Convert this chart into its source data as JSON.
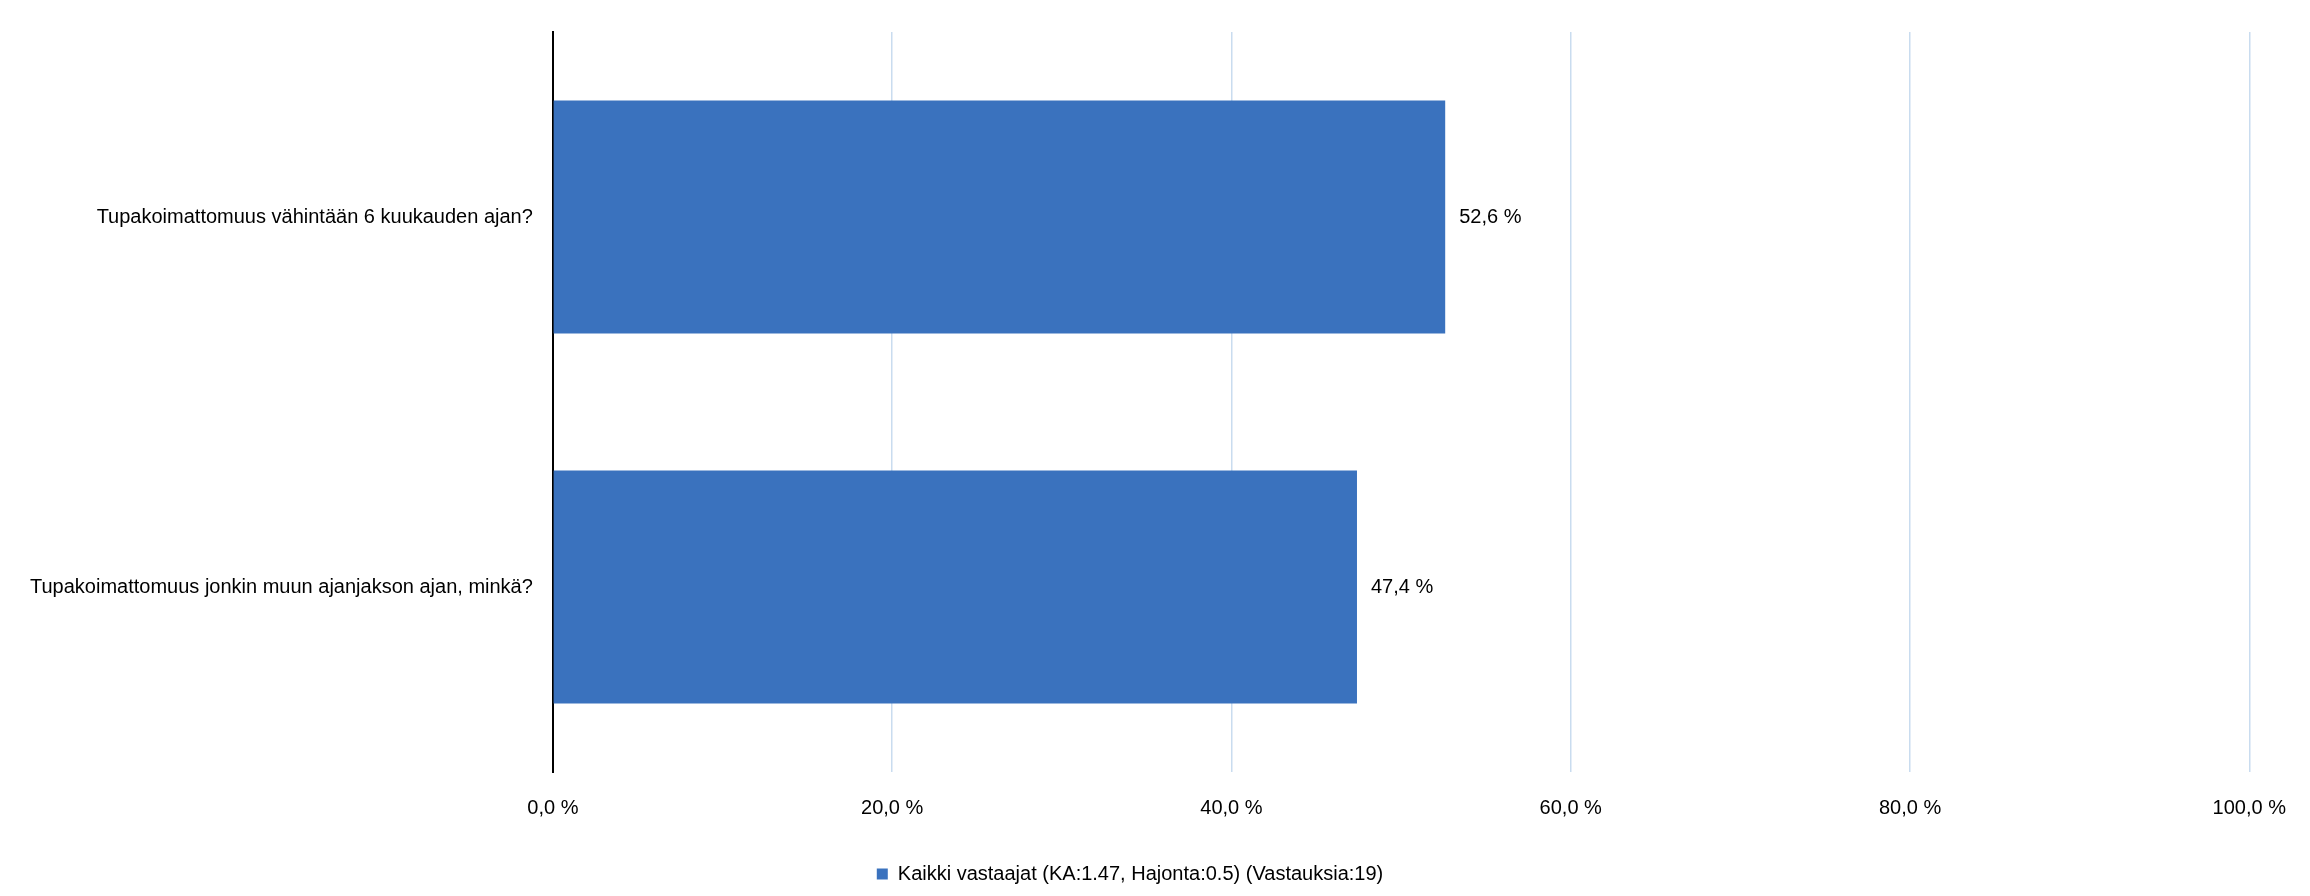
{
  "chart_data": {
    "type": "bar",
    "orientation": "horizontal",
    "categories": [
      "Tupakoimattomuus vähintään 6 kuukauden ajan?",
      "Tupakoimattomuus jonkin muun ajanjakson ajan, minkä?"
    ],
    "series": [
      {
        "name": "Kaikki vastaajat (KA:1.47, Hajonta:0.5) (Vastauksia:19)",
        "color": "#3a72be",
        "values": [
          52.6,
          47.4
        ],
        "value_labels": [
          "52,6 %",
          "47,4 %"
        ]
      }
    ],
    "xlim": [
      0,
      100
    ],
    "xticks": [
      {
        "value": 0,
        "label": "0,0 %"
      },
      {
        "value": 20,
        "label": "20,0 %"
      },
      {
        "value": 40,
        "label": "40,0 %"
      },
      {
        "value": 60,
        "label": "60,0 %"
      },
      {
        "value": 80,
        "label": "80,0 %"
      },
      {
        "value": 100,
        "label": "100,0 %"
      }
    ],
    "grid": "x",
    "legend": "bottom"
  }
}
